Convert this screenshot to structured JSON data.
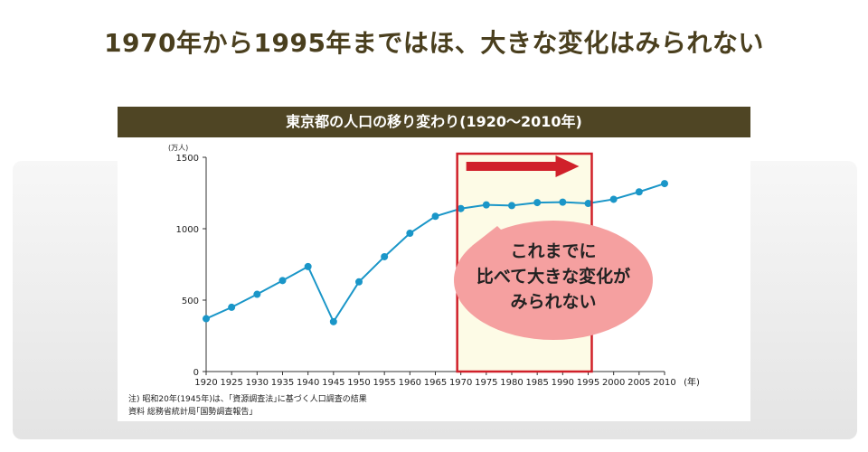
{
  "headline": "1970年から1995年まではほ、大きな変化はみられない",
  "card": {
    "title": "東京都の人口の移り変わり(1920〜2010年)",
    "note1": "注) 昭和20年(1945年)は、｢資源調査法｣に基づく人口調査の結果",
    "note2": "資料 総務省統計局｢国勢調査報告｣"
  },
  "callout": {
    "line1": "これまでに",
    "line2": "比べて大きな変化が",
    "line3": "みられない"
  },
  "colors": {
    "line": "#1a96c8",
    "highlight_box": "#d0202a",
    "arrow": "#d0202a",
    "callout_fill": "#f5a0a0",
    "highlight_bg": "#fdfbe6",
    "header_bg": "#4f4524"
  },
  "chart_data": {
    "type": "line",
    "ylabel": "(万人)",
    "xlabel": "(年)",
    "ylim": [
      0,
      1500
    ],
    "yticks": [
      0,
      500,
      1000,
      1500
    ],
    "x": [
      1920,
      1925,
      1930,
      1935,
      1940,
      1945,
      1950,
      1955,
      1960,
      1965,
      1970,
      1975,
      1980,
      1985,
      1990,
      1995,
      2000,
      2005,
      2010
    ],
    "values": [
      370,
      450,
      541,
      637,
      735,
      349,
      628,
      804,
      968,
      1087,
      1141,
      1167,
      1162,
      1183,
      1186,
      1177,
      1206,
      1258,
      1316
    ],
    "highlight_range": [
      1970,
      1995
    ],
    "grid": false
  }
}
